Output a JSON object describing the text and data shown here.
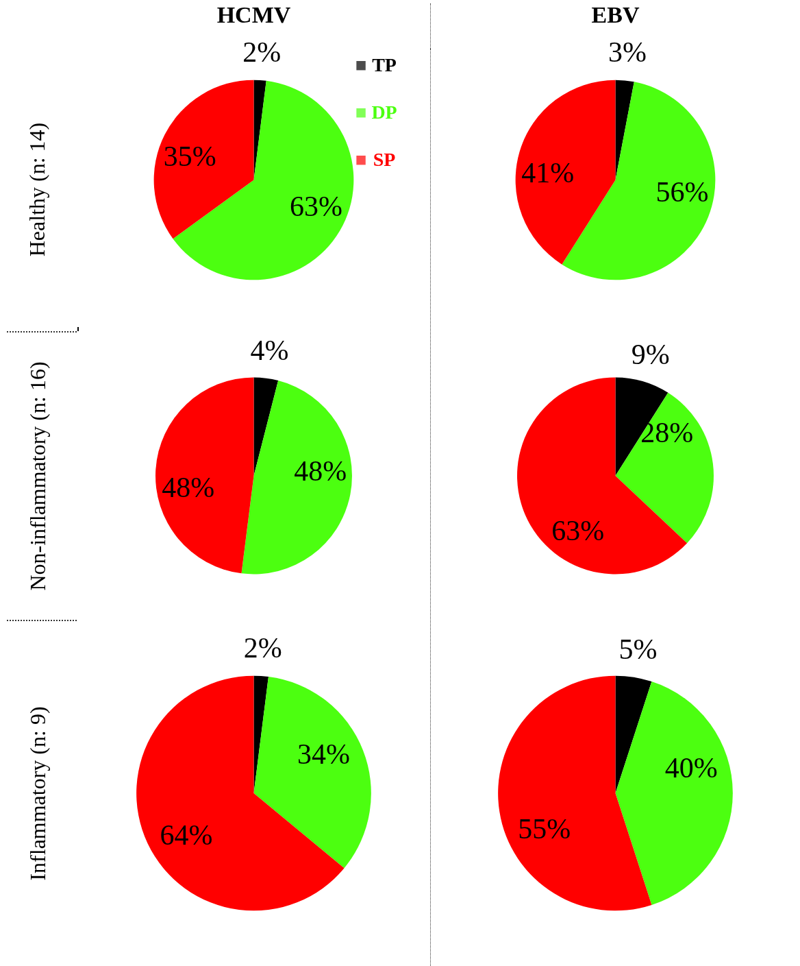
{
  "chart_data": [
    {
      "type": "pie",
      "title": "HCMV",
      "ylabel": "Healthy (n: 14)",
      "categories": [
        "TP",
        "DP",
        "SP"
      ],
      "values": [
        2,
        63,
        35
      ],
      "value_labels": [
        "2%",
        "63%",
        "35%"
      ],
      "colors": [
        "#000000",
        "#4cff10",
        "#ff0000"
      ],
      "legend": "top right"
    },
    {
      "type": "pie",
      "title": "EBV",
      "values": [
        3,
        56,
        41
      ],
      "value_labels": [
        "3%",
        "56%",
        "41%"
      ],
      "colors": [
        "#000000",
        "#4cff10",
        "#ff0000"
      ]
    },
    {
      "type": "pie",
      "ylabel": "Non-inflammatory (n: 16)",
      "values": [
        4,
        48,
        48
      ],
      "value_labels": [
        "4%",
        "48%",
        "48%"
      ],
      "colors": [
        "#000000",
        "#4cff10",
        "#ff0000"
      ]
    },
    {
      "type": "pie",
      "values": [
        9,
        28,
        63
      ],
      "value_labels": [
        "9%",
        "28%",
        "63%"
      ],
      "colors": [
        "#000000",
        "#4cff10",
        "#ff0000"
      ]
    },
    {
      "type": "pie",
      "ylabel": "Inflammatory (n: 9)",
      "values": [
        2,
        34,
        64
      ],
      "value_labels": [
        "2%",
        "34%",
        "64%"
      ],
      "colors": [
        "#000000",
        "#4cff10",
        "#ff0000"
      ]
    },
    {
      "type": "pie",
      "values": [
        5,
        40,
        55
      ],
      "value_labels": [
        "5%",
        "40%",
        "55%"
      ],
      "colors": [
        "#000000",
        "#4cff10",
        "#ff0000"
      ]
    }
  ]
}
